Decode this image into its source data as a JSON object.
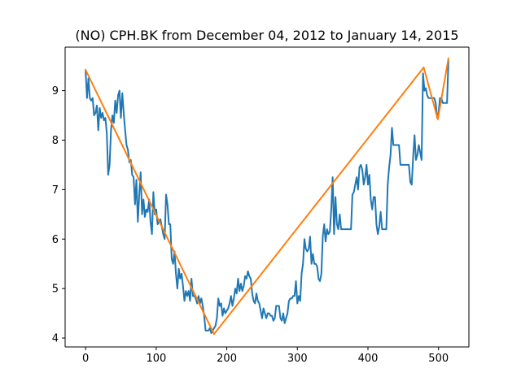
{
  "chart_data": {
    "type": "line",
    "title": "(NO) CPH.BK from December 04, 2012 to January 14, 2015",
    "xlabel": "",
    "ylabel": "",
    "xlim": [
      -29,
      543
    ],
    "ylim": [
      3.82,
      9.88
    ],
    "x_ticks": [
      0,
      100,
      200,
      300,
      400,
      500
    ],
    "y_ticks": [
      4,
      5,
      6,
      7,
      8,
      9
    ],
    "grid": false,
    "legend": "none",
    "colors": {
      "price": "#1f77b4",
      "trend": "#ff7f0e",
      "axes": "#000000"
    },
    "series": [
      {
        "key": "price",
        "points": [
          [
            0,
            9.4
          ],
          [
            2,
            8.85
          ],
          [
            4,
            9.25
          ],
          [
            6,
            8.85
          ],
          [
            8,
            8.8
          ],
          [
            10,
            8.85
          ],
          [
            12,
            8.5
          ],
          [
            14,
            8.55
          ],
          [
            16,
            8.7
          ],
          [
            18,
            8.2
          ],
          [
            20,
            8.65
          ],
          [
            22,
            8.45
          ],
          [
            24,
            8.55
          ],
          [
            26,
            8.4
          ],
          [
            28,
            8.45
          ],
          [
            30,
            8.15
          ],
          [
            32,
            7.3
          ],
          [
            34,
            7.5
          ],
          [
            36,
            8.2
          ],
          [
            38,
            8.5
          ],
          [
            40,
            8.35
          ],
          [
            42,
            8.8
          ],
          [
            44,
            8.55
          ],
          [
            46,
            8.9
          ],
          [
            48,
            9.0
          ],
          [
            50,
            8.45
          ],
          [
            52,
            8.95
          ],
          [
            54,
            8.55
          ],
          [
            56,
            8.2
          ],
          [
            58,
            7.9
          ],
          [
            60,
            7.8
          ],
          [
            62,
            7.55
          ],
          [
            64,
            7.6
          ],
          [
            66,
            7.3
          ],
          [
            68,
            7.25
          ],
          [
            70,
            6.7
          ],
          [
            72,
            7.2
          ],
          [
            74,
            6.35
          ],
          [
            76,
            6.9
          ],
          [
            78,
            7.35
          ],
          [
            80,
            6.5
          ],
          [
            82,
            6.8
          ],
          [
            84,
            6.45
          ],
          [
            86,
            6.6
          ],
          [
            88,
            6.55
          ],
          [
            90,
            6.8
          ],
          [
            92,
            6.35
          ],
          [
            94,
            6.1
          ],
          [
            96,
            6.95
          ],
          [
            98,
            6.5
          ],
          [
            100,
            6.6
          ],
          [
            102,
            6.3
          ],
          [
            104,
            6.35
          ],
          [
            106,
            6.4
          ],
          [
            108,
            6.25
          ],
          [
            110,
            6.1
          ],
          [
            112,
            6.0
          ],
          [
            114,
            6.9
          ],
          [
            116,
            6.7
          ],
          [
            118,
            6.3
          ],
          [
            120,
            6.3
          ],
          [
            122,
            5.6
          ],
          [
            124,
            5.5
          ],
          [
            126,
            5.75
          ],
          [
            128,
            5.3
          ],
          [
            130,
            5.0
          ],
          [
            132,
            5.4
          ],
          [
            134,
            5.2
          ],
          [
            136,
            5.3
          ],
          [
            138,
            5.05
          ],
          [
            140,
            4.75
          ],
          [
            142,
            4.95
          ],
          [
            144,
            4.85
          ],
          [
            146,
            4.95
          ],
          [
            148,
            4.75
          ],
          [
            150,
            5.2
          ],
          [
            152,
            4.85
          ],
          [
            154,
            4.85
          ],
          [
            156,
            4.8
          ],
          [
            158,
            4.7
          ],
          [
            160,
            4.85
          ],
          [
            162,
            4.7
          ],
          [
            164,
            4.8
          ],
          [
            166,
            4.65
          ],
          [
            168,
            4.45
          ],
          [
            170,
            4.15
          ],
          [
            172,
            4.15
          ],
          [
            174,
            4.15
          ],
          [
            176,
            4.2
          ],
          [
            178,
            4.1
          ],
          [
            180,
            4.15
          ],
          [
            182,
            4.2
          ],
          [
            184,
            4.25
          ],
          [
            186,
            4.4
          ],
          [
            188,
            4.8
          ],
          [
            190,
            4.65
          ],
          [
            192,
            4.7
          ],
          [
            194,
            4.45
          ],
          [
            196,
            4.6
          ],
          [
            198,
            4.5
          ],
          [
            200,
            4.55
          ],
          [
            202,
            4.6
          ],
          [
            204,
            4.7
          ],
          [
            206,
            4.85
          ],
          [
            208,
            4.65
          ],
          [
            210,
            4.8
          ],
          [
            212,
            5.0
          ],
          [
            214,
            4.9
          ],
          [
            216,
            5.2
          ],
          [
            218,
            4.95
          ],
          [
            220,
            5.1
          ],
          [
            222,
            4.95
          ],
          [
            224,
            5.05
          ],
          [
            226,
            5.25
          ],
          [
            228,
            5.2
          ],
          [
            230,
            5.35
          ],
          [
            232,
            5.25
          ],
          [
            234,
            5.2
          ],
          [
            236,
            4.9
          ],
          [
            238,
            4.75
          ],
          [
            240,
            4.7
          ],
          [
            242,
            4.9
          ],
          [
            244,
            4.75
          ],
          [
            246,
            4.7
          ],
          [
            248,
            4.55
          ],
          [
            250,
            4.4
          ],
          [
            252,
            4.6
          ],
          [
            254,
            4.5
          ],
          [
            256,
            4.4
          ],
          [
            258,
            4.5
          ],
          [
            260,
            4.5
          ],
          [
            262,
            4.45
          ],
          [
            264,
            4.45
          ],
          [
            266,
            4.35
          ],
          [
            268,
            4.4
          ],
          [
            270,
            4.65
          ],
          [
            272,
            4.65
          ],
          [
            274,
            4.65
          ],
          [
            276,
            4.4
          ],
          [
            278,
            4.35
          ],
          [
            280,
            4.5
          ],
          [
            282,
            4.3
          ],
          [
            284,
            4.4
          ],
          [
            286,
            4.5
          ],
          [
            288,
            4.75
          ],
          [
            290,
            4.8
          ],
          [
            292,
            4.8
          ],
          [
            294,
            4.85
          ],
          [
            296,
            4.85
          ],
          [
            298,
            5.15
          ],
          [
            300,
            4.7
          ],
          [
            302,
            4.85
          ],
          [
            304,
            4.75
          ],
          [
            306,
            5.3
          ],
          [
            308,
            5.5
          ],
          [
            310,
            6.0
          ],
          [
            312,
            5.8
          ],
          [
            314,
            5.75
          ],
          [
            316,
            5.8
          ],
          [
            318,
            6.05
          ],
          [
            320,
            5.5
          ],
          [
            322,
            5.7
          ],
          [
            324,
            5.5
          ],
          [
            326,
            5.5
          ],
          [
            328,
            5.45
          ],
          [
            330,
            5.2
          ],
          [
            332,
            5.15
          ],
          [
            334,
            5.3
          ],
          [
            336,
            6.05
          ],
          [
            338,
            6.3
          ],
          [
            340,
            5.95
          ],
          [
            342,
            6.2
          ],
          [
            344,
            6.1
          ],
          [
            346,
            6.15
          ],
          [
            348,
            6.6
          ],
          [
            350,
            7.25
          ],
          [
            352,
            6.1
          ],
          [
            354,
            6.85
          ],
          [
            356,
            6.3
          ],
          [
            358,
            6.2
          ],
          [
            360,
            6.5
          ],
          [
            362,
            6.2
          ],
          [
            364,
            6.2
          ],
          [
            366,
            6.2
          ],
          [
            368,
            6.2
          ],
          [
            370,
            6.2
          ],
          [
            372,
            6.2
          ],
          [
            374,
            6.2
          ],
          [
            376,
            6.2
          ],
          [
            378,
            6.9
          ],
          [
            380,
            6.95
          ],
          [
            382,
            7.1
          ],
          [
            384,
            7.25
          ],
          [
            386,
            7.0
          ],
          [
            388,
            7.45
          ],
          [
            390,
            7.5
          ],
          [
            392,
            7.4
          ],
          [
            394,
            7.1
          ],
          [
            396,
            7.25
          ],
          [
            398,
            7.5
          ],
          [
            400,
            7.1
          ],
          [
            402,
            7.3
          ],
          [
            404,
            6.8
          ],
          [
            406,
            6.6
          ],
          [
            408,
            6.85
          ],
          [
            410,
            6.85
          ],
          [
            412,
            6.3
          ],
          [
            414,
            6.1
          ],
          [
            416,
            6.25
          ],
          [
            418,
            6.55
          ],
          [
            420,
            6.2
          ],
          [
            422,
            6.2
          ],
          [
            424,
            6.2
          ],
          [
            426,
            6.2
          ],
          [
            428,
            7.1
          ],
          [
            430,
            7.45
          ],
          [
            432,
            7.7
          ],
          [
            434,
            8.25
          ],
          [
            436,
            7.9
          ],
          [
            438,
            7.9
          ],
          [
            440,
            7.9
          ],
          [
            442,
            7.9
          ],
          [
            444,
            7.9
          ],
          [
            446,
            7.5
          ],
          [
            448,
            7.5
          ],
          [
            450,
            7.5
          ],
          [
            452,
            7.5
          ],
          [
            454,
            7.5
          ],
          [
            456,
            7.5
          ],
          [
            458,
            7.5
          ],
          [
            460,
            7.15
          ],
          [
            462,
            7.1
          ],
          [
            464,
            7.65
          ],
          [
            466,
            8.1
          ],
          [
            468,
            7.6
          ],
          [
            470,
            7.7
          ],
          [
            472,
            7.9
          ],
          [
            474,
            7.75
          ],
          [
            476,
            7.6
          ],
          [
            478,
            9.35
          ],
          [
            480,
            9.0
          ],
          [
            482,
            9.05
          ],
          [
            484,
            8.9
          ],
          [
            486,
            8.85
          ],
          [
            488,
            8.85
          ],
          [
            490,
            8.85
          ],
          [
            492,
            8.85
          ],
          [
            494,
            8.85
          ],
          [
            496,
            8.75
          ],
          [
            498,
            8.45
          ],
          [
            500,
            8.55
          ],
          [
            502,
            8.85
          ],
          [
            504,
            8.85
          ],
          [
            506,
            8.75
          ],
          [
            508,
            8.75
          ],
          [
            510,
            8.75
          ],
          [
            512,
            8.75
          ],
          [
            514,
            9.6
          ]
        ]
      },
      {
        "key": "trend",
        "points": [
          [
            0,
            9.42
          ],
          [
            182,
            4.08
          ],
          [
            479,
            9.47
          ],
          [
            499,
            8.42
          ],
          [
            514,
            9.65
          ]
        ]
      }
    ]
  }
}
